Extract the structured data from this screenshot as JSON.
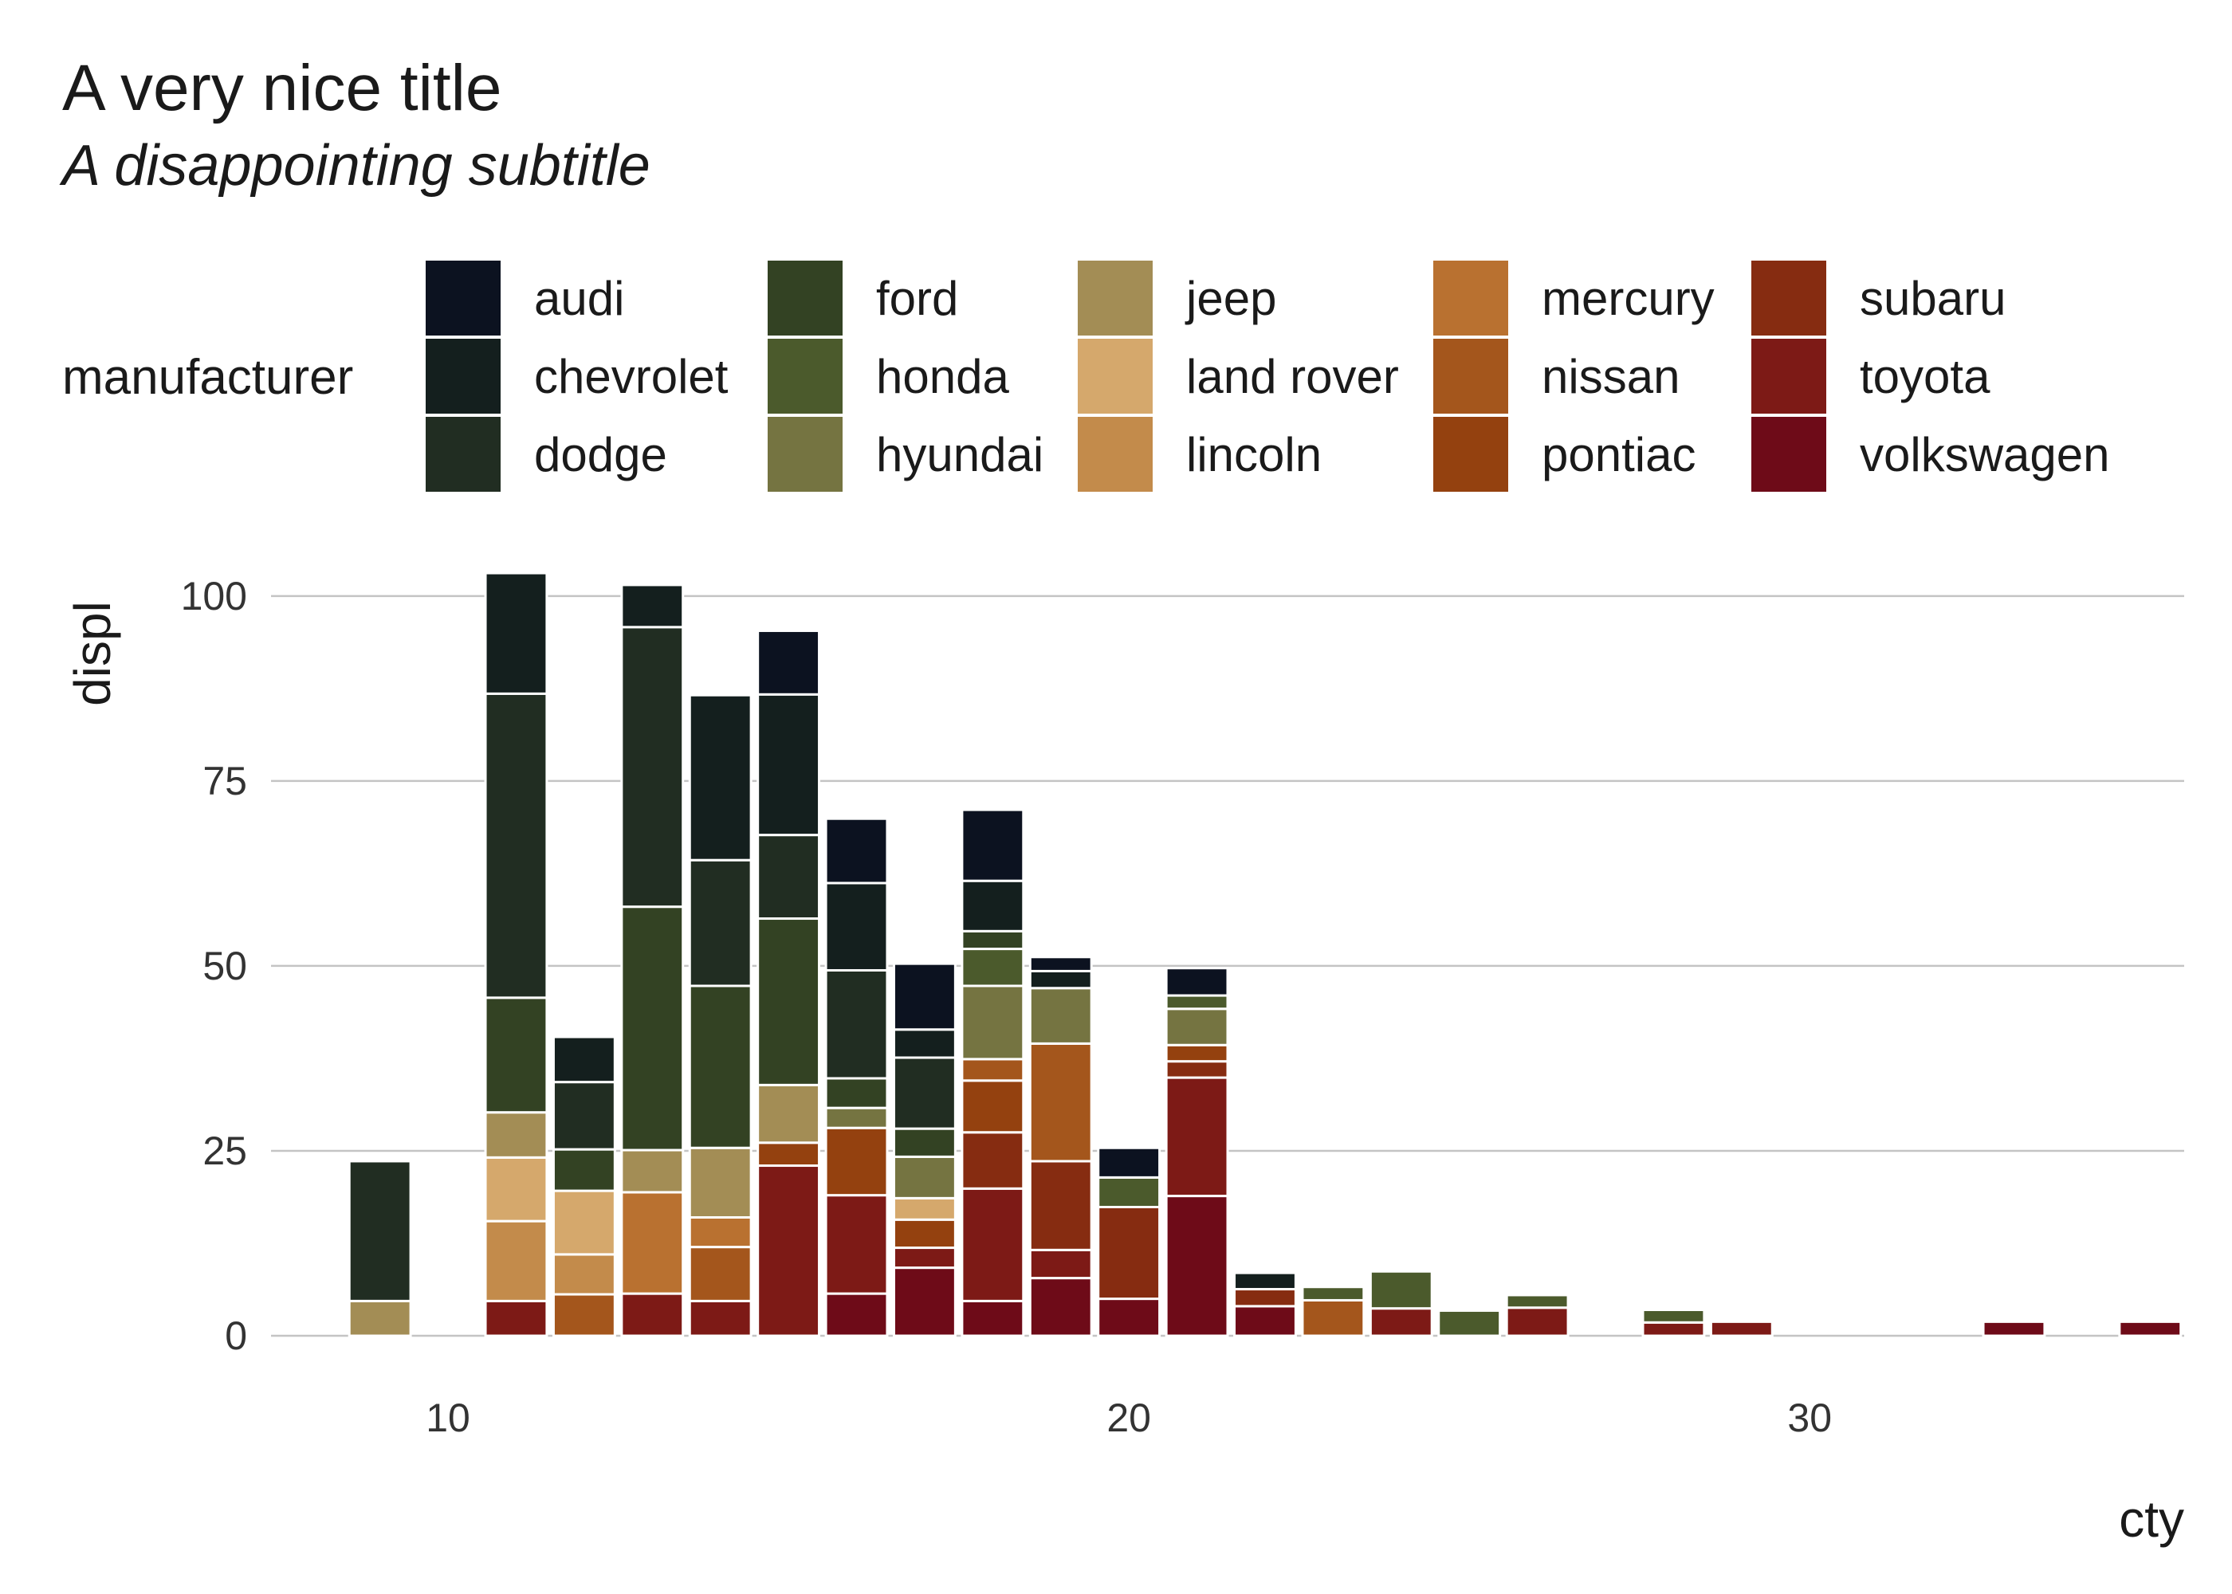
{
  "chart_data": {
    "type": "bar",
    "stacked": true,
    "title": "A very nice title",
    "subtitle": "A disappointing subtitle",
    "xlabel": "cty",
    "ylabel": "displ",
    "xlim": [
      7.4,
      35.5
    ],
    "ylim": [
      0,
      103
    ],
    "x_ticks": [
      10,
      20,
      30
    ],
    "y_ticks": [
      0,
      25,
      50,
      75,
      100
    ],
    "grid": "horizontal",
    "legend": {
      "title": "manufacturer",
      "position": "top",
      "entries": [
        "audi",
        "chevrolet",
        "dodge",
        "ford",
        "honda",
        "hyundai",
        "jeep",
        "land rover",
        "lincoln",
        "mercury",
        "nissan",
        "pontiac",
        "subaru",
        "toyota",
        "volkswagen"
      ]
    },
    "colors": {
      "audi": "#0c1220",
      "chevrolet": "#141f1e",
      "dodge": "#212d22",
      "ford": "#334223",
      "honda": "#4b5a2c",
      "hyundai": "#757441",
      "jeep": "#a38d55",
      "land rover": "#d5a86c",
      "lincoln": "#c38b4b",
      "mercury": "#b97130",
      "nissan": "#a4561c",
      "pontiac": "#94410f",
      "subaru": "#862c11",
      "toyota": "#7d1a16",
      "volkswagen": "#6e0b18"
    },
    "bars": [
      {
        "x": 9,
        "segments": [
          {
            "m": "jeep",
            "v": 4.7
          },
          {
            "m": "dodge",
            "v": 18.9
          }
        ]
      },
      {
        "x": 11,
        "segments": [
          {
            "m": "toyota",
            "v": 4.7
          },
          {
            "m": "lincoln",
            "v": 10.8
          },
          {
            "m": "land rover",
            "v": 8.6
          },
          {
            "m": "jeep",
            "v": 6.1
          },
          {
            "m": "ford",
            "v": 15.5
          },
          {
            "m": "dodge",
            "v": 41.1
          },
          {
            "m": "chevrolet",
            "v": 16.3
          }
        ]
      },
      {
        "x": 12,
        "segments": [
          {
            "m": "nissan",
            "v": 5.6
          },
          {
            "m": "lincoln",
            "v": 5.4
          },
          {
            "m": "land rover",
            "v": 8.6
          },
          {
            "m": "ford",
            "v": 5.6
          },
          {
            "m": "dodge",
            "v": 9.1
          },
          {
            "m": "chevrolet",
            "v": 6.1
          }
        ]
      },
      {
        "x": 13,
        "segments": [
          {
            "m": "toyota",
            "v": 5.7
          },
          {
            "m": "mercury",
            "v": 13.7
          },
          {
            "m": "jeep",
            "v": 5.7
          },
          {
            "m": "ford",
            "v": 32.9
          },
          {
            "m": "dodge",
            "v": 37.8
          },
          {
            "m": "chevrolet",
            "v": 5.7
          }
        ]
      },
      {
        "x": 14,
        "segments": [
          {
            "m": "toyota",
            "v": 4.7
          },
          {
            "m": "nissan",
            "v": 7.3
          },
          {
            "m": "mercury",
            "v": 4.0
          },
          {
            "m": "jeep",
            "v": 9.4
          },
          {
            "m": "ford",
            "v": 21.9
          },
          {
            "m": "dodge",
            "v": 17.0
          },
          {
            "m": "chevrolet",
            "v": 22.3
          }
        ]
      },
      {
        "x": 15,
        "segments": [
          {
            "m": "toyota",
            "v": 23.0
          },
          {
            "m": "pontiac",
            "v": 3.1
          },
          {
            "m": "jeep",
            "v": 7.8
          },
          {
            "m": "ford",
            "v": 22.5
          },
          {
            "m": "dodge",
            "v": 11.3
          },
          {
            "m": "chevrolet",
            "v": 19.0
          },
          {
            "m": "audi",
            "v": 8.6
          }
        ]
      },
      {
        "x": 16,
        "segments": [
          {
            "m": "volkswagen",
            "v": 5.7
          },
          {
            "m": "toyota",
            "v": 13.3
          },
          {
            "m": "pontiac",
            "v": 9.1
          },
          {
            "m": "hyundai",
            "v": 2.7
          },
          {
            "m": "ford",
            "v": 4.0
          },
          {
            "m": "dodge",
            "v": 14.6
          },
          {
            "m": "chevrolet",
            "v": 11.8
          },
          {
            "m": "audi",
            "v": 8.7
          }
        ]
      },
      {
        "x": 17,
        "segments": [
          {
            "m": "volkswagen",
            "v": 9.2
          },
          {
            "m": "toyota",
            "v": 2.7
          },
          {
            "m": "pontiac",
            "v": 3.8
          },
          {
            "m": "land rover",
            "v": 2.9
          },
          {
            "m": "hyundai",
            "v": 5.6
          },
          {
            "m": "ford",
            "v": 3.8
          },
          {
            "m": "dodge",
            "v": 9.6
          },
          {
            "m": "chevrolet",
            "v": 3.8
          },
          {
            "m": "audi",
            "v": 8.9
          }
        ]
      },
      {
        "x": 18,
        "segments": [
          {
            "m": "volkswagen",
            "v": 4.7
          },
          {
            "m": "toyota",
            "v": 15.2
          },
          {
            "m": "subaru",
            "v": 7.6
          },
          {
            "m": "pontiac",
            "v": 7.0
          },
          {
            "m": "nissan",
            "v": 2.9
          },
          {
            "m": "hyundai",
            "v": 9.9
          },
          {
            "m": "honda",
            "v": 5.0
          },
          {
            "m": "ford",
            "v": 2.4
          },
          {
            "m": "chevrolet",
            "v": 6.8
          },
          {
            "m": "audi",
            "v": 9.6
          }
        ]
      },
      {
        "x": 19,
        "segments": [
          {
            "m": "volkswagen",
            "v": 7.8
          },
          {
            "m": "toyota",
            "v": 3.8
          },
          {
            "m": "subaru",
            "v": 12.0
          },
          {
            "m": "nissan",
            "v": 15.9
          },
          {
            "m": "hyundai",
            "v": 7.5
          },
          {
            "m": "chevrolet",
            "v": 2.3
          },
          {
            "m": "audi",
            "v": 1.9
          }
        ]
      },
      {
        "x": 20,
        "segments": [
          {
            "m": "volkswagen",
            "v": 5.0
          },
          {
            "m": "subaru",
            "v": 12.4
          },
          {
            "m": "honda",
            "v": 4.0
          },
          {
            "m": "audi",
            "v": 4.0
          }
        ]
      },
      {
        "x": 21,
        "segments": [
          {
            "m": "volkswagen",
            "v": 18.9
          },
          {
            "m": "toyota",
            "v": 16.0
          },
          {
            "m": "subaru",
            "v": 2.2
          },
          {
            "m": "pontiac",
            "v": 2.2
          },
          {
            "m": "hyundai",
            "v": 4.9
          },
          {
            "m": "honda",
            "v": 1.8
          },
          {
            "m": "audi",
            "v": 3.7
          }
        ]
      },
      {
        "x": 22,
        "segments": [
          {
            "m": "volkswagen",
            "v": 4.0
          },
          {
            "m": "subaru",
            "v": 2.3
          },
          {
            "m": "chevrolet",
            "v": 2.2
          }
        ]
      },
      {
        "x": 23,
        "segments": [
          {
            "m": "nissan",
            "v": 4.8
          },
          {
            "m": "honda",
            "v": 1.8
          }
        ]
      },
      {
        "x": 24,
        "segments": [
          {
            "m": "toyota",
            "v": 3.7
          },
          {
            "m": "honda",
            "v": 5.0
          }
        ]
      },
      {
        "x": 25,
        "segments": [
          {
            "m": "honda",
            "v": 3.4
          }
        ]
      },
      {
        "x": 26,
        "segments": [
          {
            "m": "toyota",
            "v": 3.8
          },
          {
            "m": "honda",
            "v": 1.7
          }
        ]
      },
      {
        "x": 28,
        "segments": [
          {
            "m": "toyota",
            "v": 1.8
          },
          {
            "m": "honda",
            "v": 1.7
          }
        ]
      },
      {
        "x": 29,
        "segments": [
          {
            "m": "toyota",
            "v": 1.9
          }
        ]
      },
      {
        "x": 33,
        "segments": [
          {
            "m": "volkswagen",
            "v": 1.9
          }
        ]
      },
      {
        "x": 35,
        "segments": [
          {
            "m": "volkswagen",
            "v": 1.9
          }
        ]
      }
    ]
  }
}
